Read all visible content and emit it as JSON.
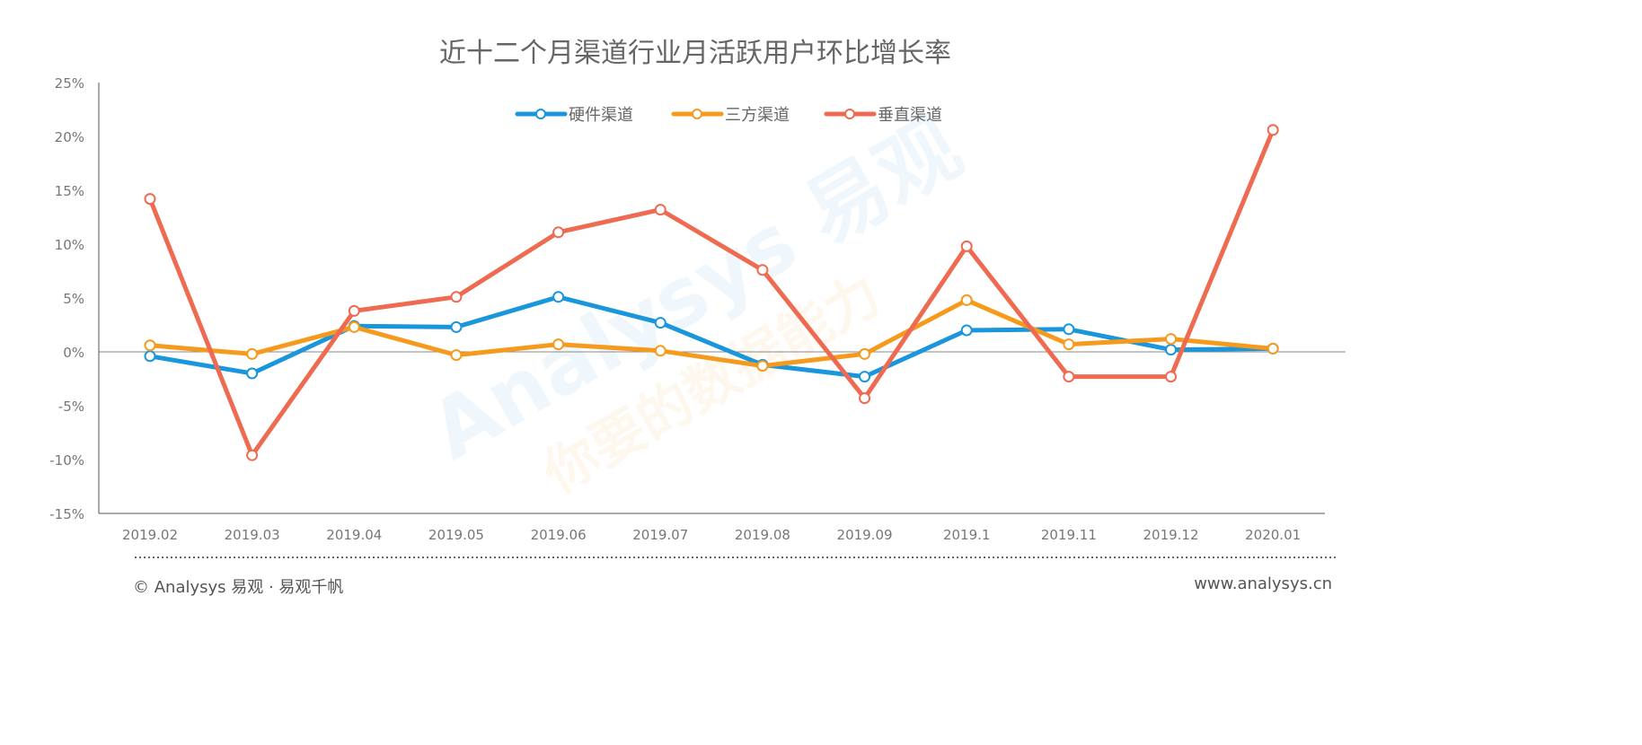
{
  "chart_data": {
    "type": "line",
    "title": "近十二个月渠道行业月活跃用户环比增长率",
    "categories": [
      "2019.02",
      "2019.03",
      "2019.04",
      "2019.05",
      "2019.06",
      "2019.07",
      "2019.08",
      "2019.09",
      "2019.1",
      "2019.11",
      "2019.12",
      "2020.01"
    ],
    "ylim": [
      -15,
      25
    ],
    "yticks": [
      "-15%",
      "-10%",
      "-5%",
      "0%",
      "5%",
      "10%",
      "15%",
      "20%",
      "25%"
    ],
    "ytick_values": [
      -15,
      -10,
      -5,
      0,
      5,
      10,
      15,
      20,
      25
    ],
    "grid": false,
    "legend_position": "top",
    "series": [
      {
        "name": "硬件渠道",
        "color": "#1a96dc",
        "values": [
          -0.4,
          -2.0,
          2.4,
          2.3,
          5.1,
          2.7,
          -1.2,
          -2.3,
          2.0,
          2.1,
          0.2,
          0.3
        ]
      },
      {
        "name": "三方渠道",
        "color": "#f59a1c",
        "values": [
          0.6,
          -0.2,
          2.3,
          -0.3,
          0.7,
          0.1,
          -1.3,
          -0.2,
          4.8,
          0.7,
          1.2,
          0.3
        ]
      },
      {
        "name": "垂直渠道",
        "color": "#ee6a50",
        "values": [
          14.2,
          -9.6,
          3.8,
          5.1,
          11.1,
          13.2,
          7.6,
          -4.3,
          9.8,
          -2.3,
          -2.3,
          20.6
        ]
      }
    ]
  },
  "footer": {
    "left": "© Analysys 易观 · 易观千帆",
    "right": "www.analysys.cn"
  },
  "watermark": {
    "brand": "Analysys 易观",
    "slogan": "你要的数据能力"
  }
}
